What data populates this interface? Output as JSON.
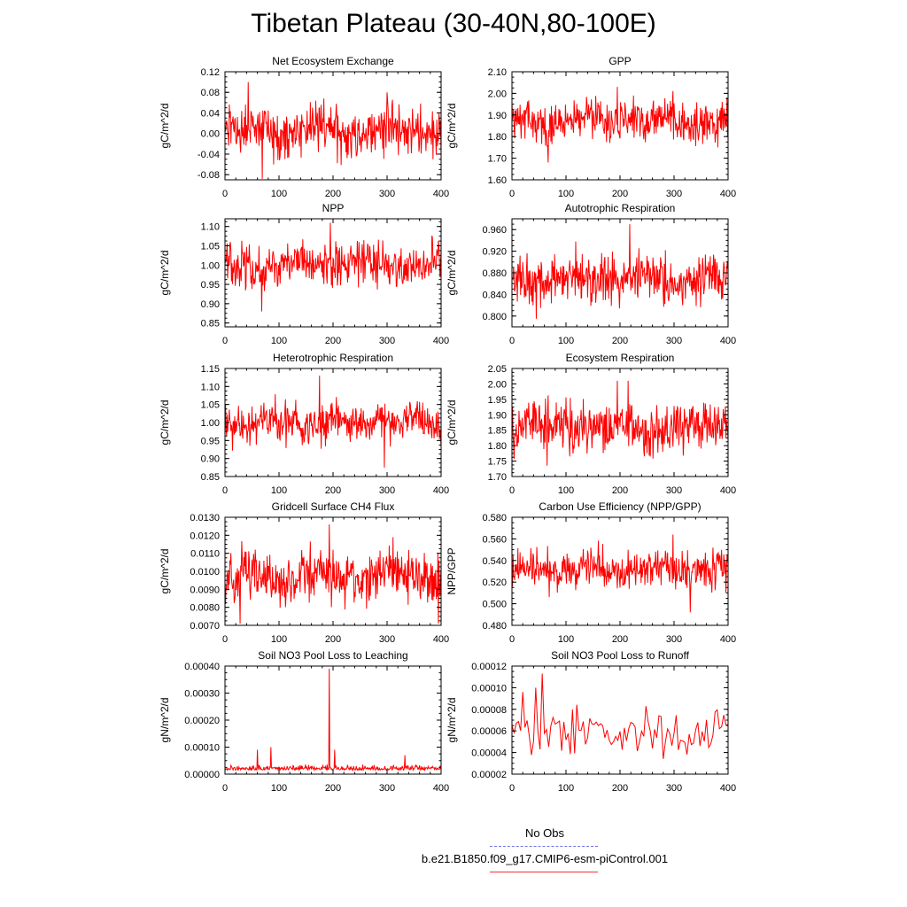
{
  "title": "Tibetan Plateau (30-40N,80-100E)",
  "colors": {
    "series": "#ff0000",
    "obs": "#6f6fe6",
    "axis": "#000000"
  },
  "legend": {
    "obs_label": "No Obs",
    "case_label": "b.e21.B1850.f09_g17.CMIP6-esm-piControl.001"
  },
  "chart_data": [
    {
      "type": "line",
      "title": "Net Ecosystem Exchange",
      "ylabel": "gC/m^2/d",
      "xlim": [
        0,
        400
      ],
      "ylim": [
        -0.09,
        0.12
      ],
      "xticks": [
        0,
        100,
        200,
        300,
        400
      ],
      "yticks": [
        -0.08,
        -0.04,
        0.0,
        0.04,
        0.08,
        0.12
      ],
      "ytick_labels": [
        "-0.08",
        "-0.04",
        "0.00",
        "0.04",
        "0.08",
        "0.12"
      ],
      "n": 400,
      "mean": 0.005,
      "amp": 0.03,
      "spikes": [
        [
          43,
          0.1
        ],
        [
          69,
          -0.088
        ],
        [
          300,
          0.08
        ]
      ]
    },
    {
      "type": "line",
      "title": "GPP",
      "ylabel": "gC/m^2/d",
      "xlim": [
        0,
        400
      ],
      "ylim": [
        1.6,
        2.1
      ],
      "xticks": [
        0,
        100,
        200,
        300,
        400
      ],
      "yticks": [
        1.6,
        1.7,
        1.8,
        1.9,
        2.0,
        2.1
      ],
      "ytick_labels": [
        "1.60",
        "1.70",
        "1.80",
        "1.90",
        "2.00",
        "2.10"
      ],
      "n": 400,
      "mean": 1.87,
      "amp": 0.06,
      "spikes": [
        [
          67,
          1.68
        ],
        [
          195,
          2.03
        ],
        [
          225,
          1.99
        ]
      ]
    },
    {
      "type": "line",
      "title": "NPP",
      "ylabel": "gC/m^2/d",
      "xlim": [
        0,
        400
      ],
      "ylim": [
        0.84,
        1.12
      ],
      "xticks": [
        0,
        100,
        200,
        300,
        400
      ],
      "yticks": [
        0.85,
        0.9,
        0.95,
        1.0,
        1.05,
        1.1
      ],
      "ytick_labels": [
        "0.85",
        "0.90",
        "0.95",
        "1.00",
        "1.05",
        "1.10"
      ],
      "n": 400,
      "mean": 1.0,
      "amp": 0.035,
      "spikes": [
        [
          68,
          0.88
        ],
        [
          195,
          1.11
        ]
      ]
    },
    {
      "type": "line",
      "title": "Autotrophic Respiration",
      "ylabel": "gC/m^2/d",
      "xlim": [
        0,
        400
      ],
      "ylim": [
        0.78,
        0.98
      ],
      "xticks": [
        0,
        100,
        200,
        300,
        400
      ],
      "yticks": [
        0.8,
        0.84,
        0.88,
        0.92,
        0.96
      ],
      "ytick_labels": [
        "0.800",
        "0.840",
        "0.880",
        "0.920",
        "0.960"
      ],
      "n": 400,
      "mean": 0.87,
      "amp": 0.028,
      "spikes": [
        [
          218,
          0.97
        ],
        [
          45,
          0.795
        ]
      ]
    },
    {
      "type": "line",
      "title": "Heterotrophic Respiration",
      "ylabel": "gC/m^2/d",
      "xlim": [
        0,
        400
      ],
      "ylim": [
        0.85,
        1.15
      ],
      "xticks": [
        0,
        100,
        200,
        300,
        400
      ],
      "yticks": [
        0.85,
        0.9,
        0.95,
        1.0,
        1.05,
        1.1,
        1.15
      ],
      "ytick_labels": [
        "0.85",
        "0.90",
        "0.95",
        "1.00",
        "1.05",
        "1.10",
        "1.15"
      ],
      "n": 400,
      "mean": 1.0,
      "amp": 0.035,
      "spikes": [
        [
          175,
          1.13
        ],
        [
          295,
          0.875
        ]
      ]
    },
    {
      "type": "line",
      "title": "Ecosystem Respiration",
      "ylabel": "gC/m^2/d",
      "xlim": [
        0,
        400
      ],
      "ylim": [
        1.7,
        2.05
      ],
      "xticks": [
        0,
        100,
        200,
        300,
        400
      ],
      "yticks": [
        1.7,
        1.75,
        1.8,
        1.85,
        1.9,
        1.95,
        2.0,
        2.05
      ],
      "ytick_labels": [
        "1.70",
        "1.75",
        "1.80",
        "1.85",
        "1.90",
        "1.95",
        "2.00",
        "2.05"
      ],
      "n": 400,
      "mean": 1.86,
      "amp": 0.05,
      "spikes": [
        [
          195,
          2.01
        ],
        [
          215,
          2.01
        ],
        [
          65,
          1.735
        ]
      ]
    },
    {
      "type": "line",
      "title": "Gridcell Surface CH4 Flux",
      "ylabel": "gC/m^2/d",
      "xlim": [
        0,
        400
      ],
      "ylim": [
        0.007,
        0.013
      ],
      "xticks": [
        0,
        100,
        200,
        300,
        400
      ],
      "yticks": [
        0.007,
        0.008,
        0.009,
        0.01,
        0.011,
        0.012,
        0.013
      ],
      "ytick_labels": [
        "0.0070",
        "0.0080",
        "0.0090",
        "0.0100",
        "0.0110",
        "0.0120",
        "0.0130"
      ],
      "n": 400,
      "mean": 0.0097,
      "amp": 0.0009,
      "spikes": [
        [
          193,
          0.0126
        ],
        [
          395,
          0.0071
        ],
        [
          28,
          0.0071
        ]
      ]
    },
    {
      "type": "line",
      "title": "Carbon Use Efficiency (NPP/GPP)",
      "ylabel": "NPP/GPP",
      "xlim": [
        0,
        400
      ],
      "ylim": [
        0.48,
        0.58
      ],
      "xticks": [
        0,
        100,
        200,
        300,
        400
      ],
      "yticks": [
        0.48,
        0.5,
        0.52,
        0.54,
        0.56,
        0.58
      ],
      "ytick_labels": [
        "0.480",
        "0.500",
        "0.520",
        "0.540",
        "0.560",
        "0.580"
      ],
      "n": 400,
      "mean": 0.532,
      "amp": 0.011,
      "spikes": [
        [
          298,
          0.564
        ],
        [
          330,
          0.492
        ]
      ]
    },
    {
      "type": "line",
      "title": "Soil NO3 Pool Loss to Leaching",
      "ylabel": "gN/m^2/d",
      "xlim": [
        0,
        400
      ],
      "ylim": [
        0.0,
        0.0004
      ],
      "xticks": [
        0,
        100,
        200,
        300,
        400
      ],
      "yticks": [
        0.0,
        0.0001,
        0.0002,
        0.0003,
        0.0004
      ],
      "ytick_labels": [
        "0.00000",
        "0.00010",
        "0.00020",
        "0.00030",
        "0.00040"
      ],
      "n": 400,
      "mean": 1.5e-05,
      "amp": 1.2e-05,
      "positive": true,
      "spikes": [
        [
          193,
          0.00039
        ],
        [
          60,
          9e-05
        ],
        [
          85,
          0.0001
        ],
        [
          203,
          9e-05
        ],
        [
          333,
          7e-05
        ]
      ]
    },
    {
      "type": "line",
      "title": "Soil NO3 Pool Loss to Runoff",
      "ylabel": "gN/m^2/d",
      "xlim": [
        0,
        400
      ],
      "ylim": [
        2e-05,
        0.00012
      ],
      "xticks": [
        0,
        100,
        200,
        300,
        400
      ],
      "yticks": [
        2e-05,
        4e-05,
        6e-05,
        8e-05,
        0.0001,
        0.00012
      ],
      "ytick_labels": [
        "0.00002",
        "0.00004",
        "0.00006",
        "0.00008",
        "0.00010",
        "0.00012"
      ],
      "n": 100,
      "mean": 5.8e-05,
      "amp": 1.3e-05,
      "spikes": [
        [
          58,
          0.000113
        ],
        [
          43,
          0.0001
        ],
        [
          18,
          9.6e-05
        ]
      ]
    }
  ]
}
